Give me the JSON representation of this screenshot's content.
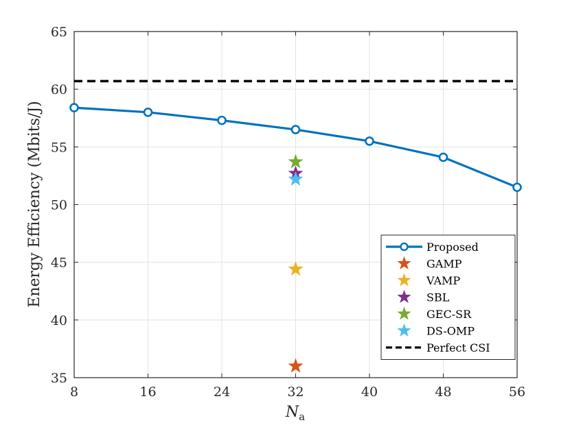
{
  "chart_data": {
    "type": "line",
    "xlabel_main": "N",
    "xlabel_sub": "a",
    "ylabel": "Energy Efficiency (Mbits/J)",
    "xlim": [
      8,
      56
    ],
    "ylim": [
      35,
      65
    ],
    "xticks": [
      8,
      16,
      24,
      32,
      40,
      48,
      56
    ],
    "yticks": [
      35,
      40,
      45,
      50,
      55,
      60,
      65
    ],
    "grid": true,
    "legend_position": "bottom-right",
    "series": [
      {
        "name": "Proposed",
        "kind": "line-marker",
        "color": "#0072BD",
        "x": [
          8,
          16,
          24,
          32,
          40,
          48,
          56
        ],
        "y": [
          58.4,
          58.0,
          57.3,
          56.5,
          55.5,
          54.1,
          51.5
        ]
      },
      {
        "name": "GAMP",
        "kind": "star",
        "color": "#D95319",
        "x": [
          32
        ],
        "y": [
          36.0
        ]
      },
      {
        "name": "VAMP",
        "kind": "star",
        "color": "#EDB120",
        "x": [
          32
        ],
        "y": [
          44.4
        ]
      },
      {
        "name": "SBL",
        "kind": "star",
        "color": "#7E2F8E",
        "x": [
          32
        ],
        "y": [
          52.7
        ]
      },
      {
        "name": "GEC-SR",
        "kind": "star",
        "color": "#77AC30",
        "x": [
          32
        ],
        "y": [
          53.7
        ]
      },
      {
        "name": "DS-OMP",
        "kind": "star",
        "color": "#4DBEEE",
        "x": [
          32
        ],
        "y": [
          52.2
        ]
      },
      {
        "name": "Perfect CSI",
        "kind": "dashed-hline",
        "color": "#000000",
        "y": 60.7
      }
    ]
  }
}
